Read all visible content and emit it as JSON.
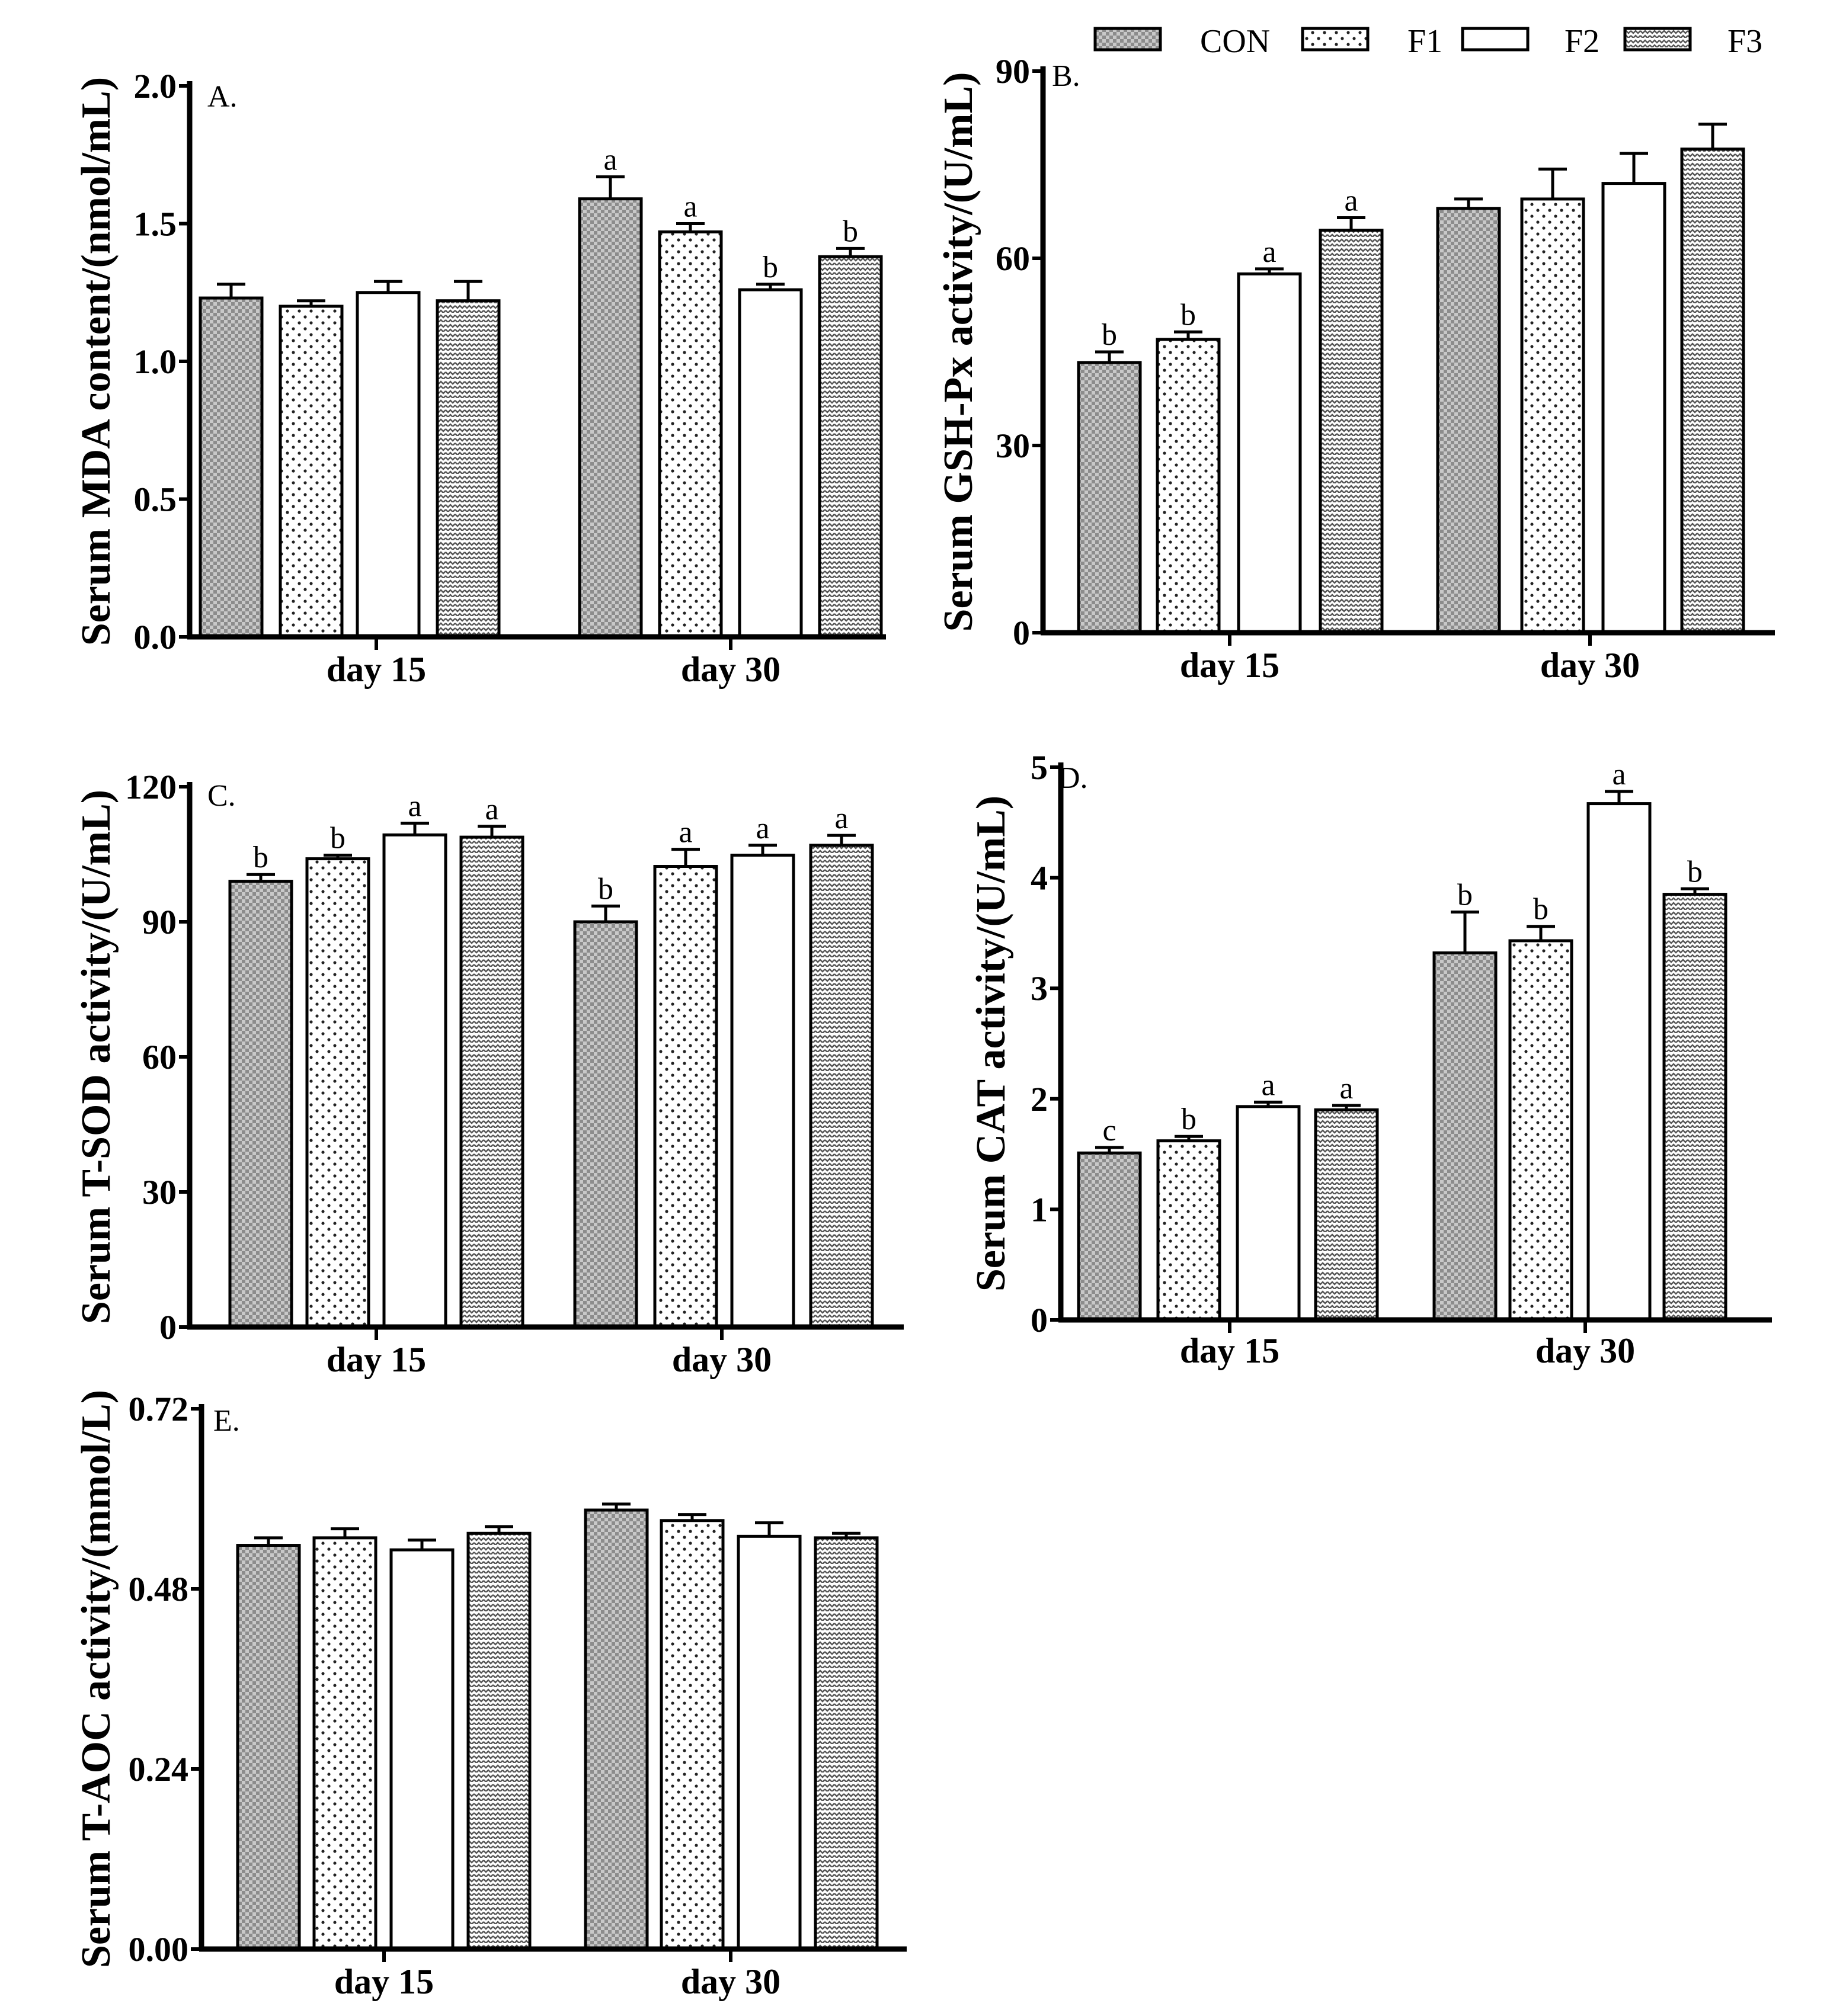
{
  "legend": [
    {
      "name": "CON",
      "pattern": "checker"
    },
    {
      "name": "F1",
      "pattern": "dots"
    },
    {
      "name": "F2",
      "pattern": "plain"
    },
    {
      "name": "F3",
      "pattern": "zigzag"
    }
  ],
  "colors": {
    "checker": "#9a9a9a",
    "dots": "#222222",
    "plain": "#ffffff",
    "zigzag": "#555555",
    "axis": "#000000"
  },
  "chart_data": [
    {
      "type": "bar",
      "panel": "A.",
      "ylabel": "Serum MDA content/(nmol/mL)",
      "ylim": [
        0,
        2.0
      ],
      "yticks": [
        "0.0",
        "0.5",
        "1.0",
        "1.5",
        "2.0"
      ],
      "categories": [
        "day 15",
        "day 30"
      ],
      "series": [
        {
          "name": "CON",
          "values": [
            1.23,
            1.59
          ],
          "errors": [
            0.05,
            0.08
          ],
          "letters": [
            "",
            "a"
          ]
        },
        {
          "name": "F1",
          "values": [
            1.2,
            1.47
          ],
          "errors": [
            0.02,
            0.03
          ],
          "letters": [
            "",
            "a"
          ]
        },
        {
          "name": "F2",
          "values": [
            1.25,
            1.26
          ],
          "errors": [
            0.04,
            0.02
          ],
          "letters": [
            "",
            "b"
          ]
        },
        {
          "name": "F3",
          "values": [
            1.22,
            1.38
          ],
          "errors": [
            0.07,
            0.03
          ],
          "letters": [
            "",
            "b"
          ]
        }
      ]
    },
    {
      "type": "bar",
      "panel": "B.",
      "ylabel": "Serum GSH-Px activity/(U/mL)",
      "ylim": [
        0,
        90
      ],
      "yticks": [
        "0",
        "30",
        "60",
        "90"
      ],
      "categories": [
        "day 15",
        "day 30"
      ],
      "series": [
        {
          "name": "CON",
          "values": [
            43.3,
            68.0
          ],
          "errors": [
            1.7,
            1.5
          ],
          "letters": [
            "b",
            ""
          ]
        },
        {
          "name": "F1",
          "values": [
            47.0,
            69.5
          ],
          "errors": [
            1.2,
            4.8
          ],
          "letters": [
            "b",
            ""
          ]
        },
        {
          "name": "F2",
          "values": [
            57.5,
            72.0
          ],
          "errors": [
            0.8,
            4.8
          ],
          "letters": [
            "a",
            ""
          ]
        },
        {
          "name": "F3",
          "values": [
            64.5,
            77.5
          ],
          "errors": [
            2.0,
            4.0
          ],
          "letters": [
            "a",
            ""
          ]
        }
      ]
    },
    {
      "type": "bar",
      "panel": "C.",
      "ylabel": "Serum T-SOD activity/(U/mL)",
      "ylim": [
        0,
        120
      ],
      "yticks": [
        "0",
        "30",
        "60",
        "90",
        "120"
      ],
      "categories": [
        "day 15",
        "day 30"
      ],
      "series": [
        {
          "name": "CON",
          "values": [
            99.0,
            90.0
          ],
          "errors": [
            1.5,
            3.5
          ],
          "letters": [
            "b",
            "b"
          ]
        },
        {
          "name": "F1",
          "values": [
            104.0,
            102.3
          ],
          "errors": [
            0.8,
            3.8
          ],
          "letters": [
            "b",
            "a"
          ]
        },
        {
          "name": "F2",
          "values": [
            109.3,
            104.8
          ],
          "errors": [
            2.6,
            2.2
          ],
          "letters": [
            "a",
            "a"
          ]
        },
        {
          "name": "F3",
          "values": [
            108.8,
            107.0
          ],
          "errors": [
            2.4,
            2.2
          ],
          "letters": [
            "a",
            "a"
          ]
        }
      ]
    },
    {
      "type": "bar",
      "panel": "D.",
      "ylabel": "Serum CAT activity/(U/mL)",
      "ylim": [
        0,
        5
      ],
      "yticks": [
        "0",
        "1",
        "2",
        "3",
        "4",
        "5"
      ],
      "categories": [
        "day 15",
        "day 30"
      ],
      "series": [
        {
          "name": "CON",
          "values": [
            1.51,
            3.32
          ],
          "errors": [
            0.05,
            0.37
          ],
          "letters": [
            "c",
            "b"
          ]
        },
        {
          "name": "F1",
          "values": [
            1.62,
            3.43
          ],
          "errors": [
            0.04,
            0.13
          ],
          "letters": [
            "b",
            "b"
          ]
        },
        {
          "name": "F2",
          "values": [
            1.93,
            4.67
          ],
          "errors": [
            0.04,
            0.11
          ],
          "letters": [
            "a",
            "a"
          ]
        },
        {
          "name": "F3",
          "values": [
            1.9,
            3.85
          ],
          "errors": [
            0.04,
            0.05
          ],
          "letters": [
            "a",
            "b"
          ]
        }
      ]
    },
    {
      "type": "bar",
      "panel": "E.",
      "ylabel": "Serum T-AOC activity/(mmol/L)",
      "ylim": [
        0,
        0.72
      ],
      "yticks": [
        "0.00",
        "0.24",
        "0.48",
        "0.72"
      ],
      "categories": [
        "day 15",
        "day 30"
      ],
      "series": [
        {
          "name": "CON",
          "values": [
            0.538,
            0.585
          ],
          "errors": [
            0.01,
            0.008
          ],
          "letters": [
            "",
            ""
          ]
        },
        {
          "name": "F1",
          "values": [
            0.548,
            0.571
          ],
          "errors": [
            0.012,
            0.008
          ],
          "letters": [
            "",
            ""
          ]
        },
        {
          "name": "F2",
          "values": [
            0.532,
            0.55
          ],
          "errors": [
            0.013,
            0.018
          ],
          "letters": [
            "",
            ""
          ]
        },
        {
          "name": "F3",
          "values": [
            0.554,
            0.548
          ],
          "errors": [
            0.009,
            0.006
          ],
          "letters": [
            "",
            ""
          ]
        }
      ]
    }
  ]
}
